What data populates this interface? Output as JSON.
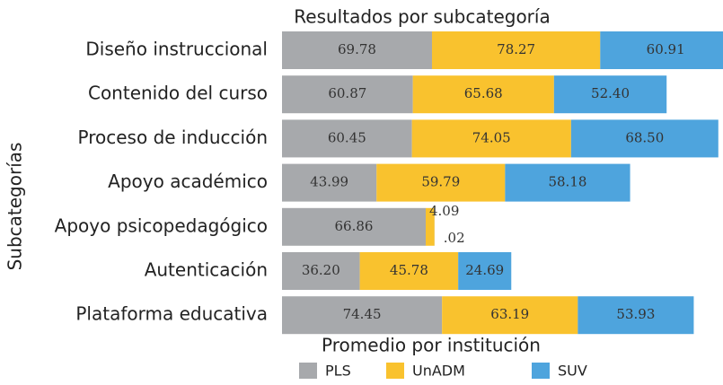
{
  "chart_data": {
    "type": "stacked-bar-horizontal",
    "title": "Resultados por subcategoría",
    "x_label": "Promedio por institución",
    "y_label": "Subcategorías",
    "categories": [
      "Diseño instruccional",
      "Contenido del curso",
      "Proceso de inducción",
      "Apoyo académico",
      "Apoyo psicopedagógico",
      "Autenticación",
      "Plataforma educativa"
    ],
    "series": [
      {
        "name": "PLS",
        "color": "#a7a9ac",
        "values": [
          69.78,
          60.87,
          60.45,
          43.99,
          66.86,
          36.2,
          74.45
        ],
        "value_labels": [
          "69.78",
          "60.87",
          "60.45",
          "43.99",
          "66.86",
          "36.20",
          "74.45"
        ]
      },
      {
        "name": "UnADM",
        "color": "#f9c22e",
        "values": [
          78.27,
          65.68,
          74.05,
          59.79,
          4.09,
          45.78,
          63.19
        ],
        "value_labels": [
          "78.27",
          "65.68",
          "74.05",
          "59.79",
          "4.09",
          "45.78",
          "63.19"
        ]
      },
      {
        "name": "SUV",
        "color": "#4ea4dd",
        "values": [
          60.91,
          52.4,
          68.5,
          58.18,
          0.02,
          24.69,
          53.93
        ],
        "value_labels": [
          "60.91",
          "52.40",
          "68.50",
          "58.18",
          ".02",
          "24.69",
          "53.93"
        ]
      }
    ],
    "legend": "bottom"
  }
}
